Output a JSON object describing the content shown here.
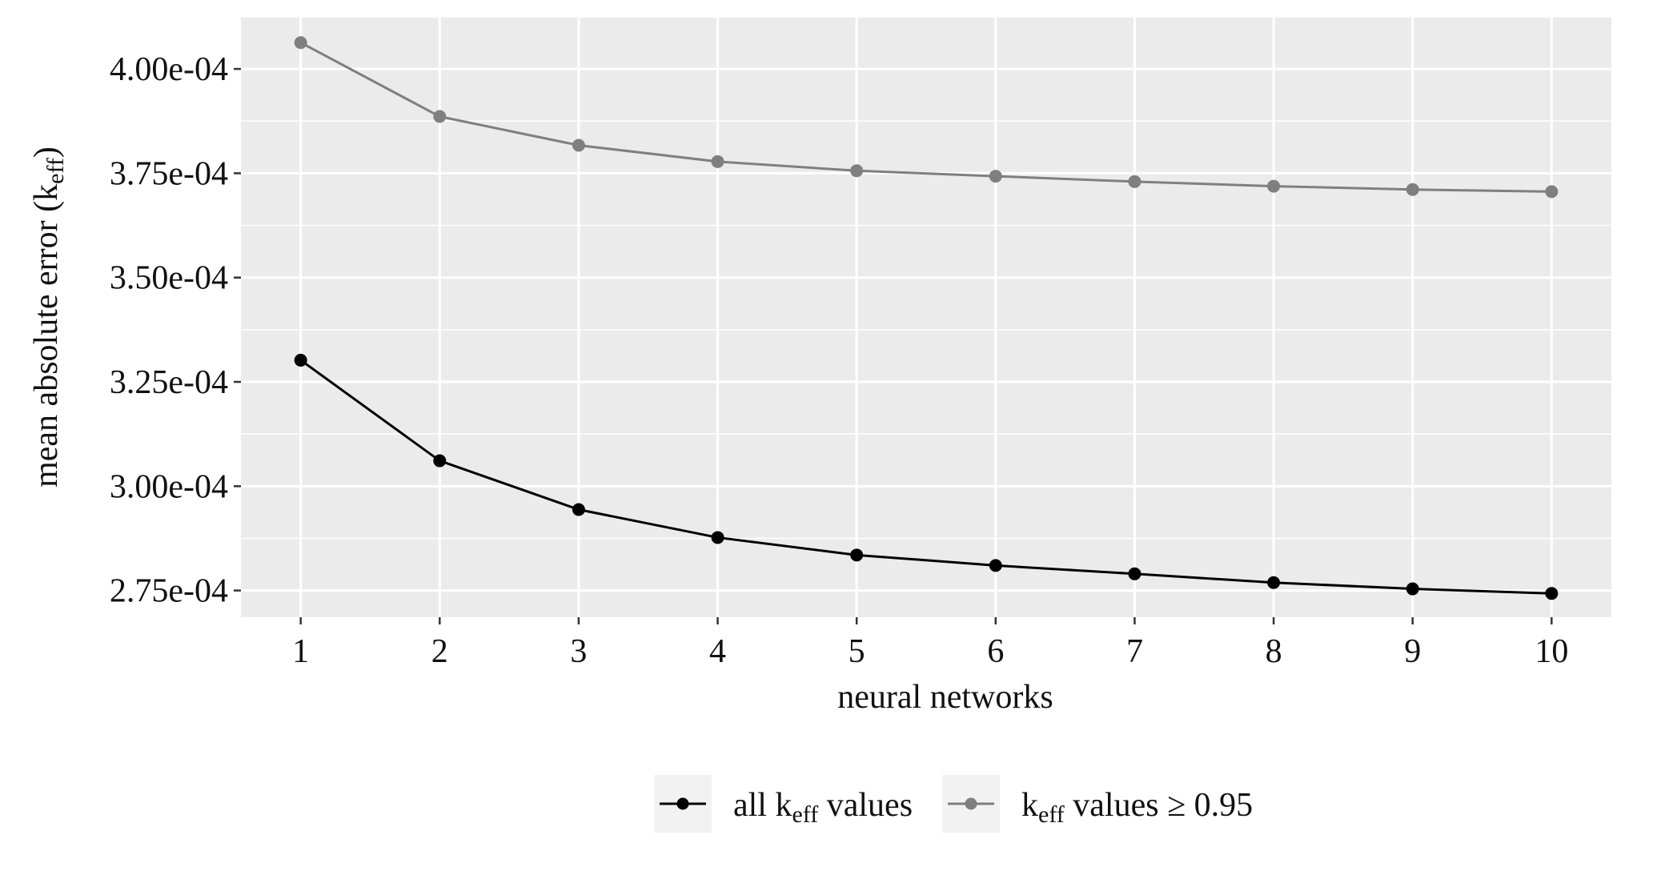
{
  "chart_data": {
    "type": "line",
    "xlabel": "neural networks",
    "ylabel": {
      "before": "mean absolute error (k",
      "sub": "eff",
      "after": ")"
    },
    "x": [
      1,
      2,
      3,
      4,
      5,
      6,
      7,
      8,
      9,
      10
    ],
    "xlim": [
      0.57,
      10.43
    ],
    "ylim": [
      0.0002686,
      0.0004123
    ],
    "yticks": [
      {
        "value": 0.000275,
        "label": "2.75e-04"
      },
      {
        "value": 0.0003,
        "label": "3.00e-04"
      },
      {
        "value": 0.000325,
        "label": "3.25e-04"
      },
      {
        "value": 0.00035,
        "label": "3.50e-04"
      },
      {
        "value": 0.000375,
        "label": "3.75e-04"
      },
      {
        "value": 0.0004,
        "label": "4.00e-04"
      }
    ],
    "xticks": [
      {
        "value": 1,
        "label": "1"
      },
      {
        "value": 2,
        "label": "2"
      },
      {
        "value": 3,
        "label": "3"
      },
      {
        "value": 4,
        "label": "4"
      },
      {
        "value": 5,
        "label": "5"
      },
      {
        "value": 6,
        "label": "6"
      },
      {
        "value": 7,
        "label": "7"
      },
      {
        "value": 8,
        "label": "8"
      },
      {
        "value": 9,
        "label": "9"
      },
      {
        "value": 10,
        "label": "10"
      }
    ],
    "grid": true,
    "legend_position": "bottom",
    "series": [
      {
        "key": "all",
        "legend": {
          "before": "all k",
          "sub": "eff",
          "after": " values"
        },
        "color": "#000000",
        "values": [
          0.0003302,
          0.0003061,
          0.0002944,
          0.0002877,
          0.0002835,
          0.000281,
          0.000279,
          0.0002769,
          0.0002754,
          0.0002743
        ]
      },
      {
        "key": "high",
        "legend": {
          "before": "k",
          "sub": "eff",
          "after": " values ≥ 0.95"
        },
        "color": "#7f7f7f",
        "values": [
          0.0004063,
          0.0003886,
          0.0003817,
          0.0003778,
          0.0003756,
          0.0003743,
          0.000373,
          0.0003719,
          0.0003711,
          0.0003706
        ]
      }
    ]
  }
}
